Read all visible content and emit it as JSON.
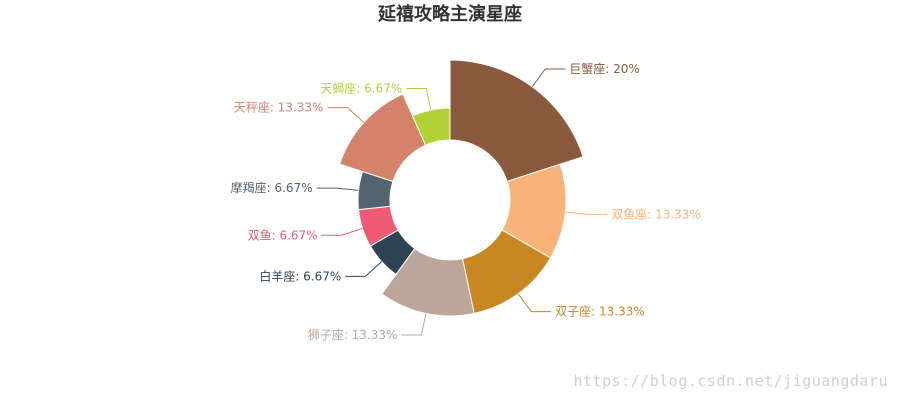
{
  "chart_data": {
    "type": "pie",
    "subtype": "rose-donut",
    "title": "延禧攻略主演星座",
    "slices": [
      {
        "label": "巨蟹座: 20%",
        "name": "巨蟹座",
        "value": 20,
        "color": "#8B5A3C"
      },
      {
        "label": "双鱼座: 13.33%",
        "name": "双鱼座",
        "value": 13.33,
        "color": "#F8B27A"
      },
      {
        "label": "双子座: 13.33%",
        "name": "双子座",
        "value": 13.33,
        "color": "#C98723"
      },
      {
        "label": "狮子座: 13.33%",
        "name": "狮子座",
        "value": 13.33,
        "color": "#BCA59A"
      },
      {
        "label": "白羊座: 6.67%",
        "name": "白羊座",
        "value": 6.67,
        "color": "#2E4456"
      },
      {
        "label": "双鱼: 6.67%",
        "name": "双鱼",
        "value": 6.67,
        "color": "#EF5B73"
      },
      {
        "label": "摩羯座: 6.67%",
        "name": "摩羯座",
        "value": 6.67,
        "color": "#526470"
      },
      {
        "label": "天秤座: 13.33%",
        "name": "天秤座",
        "value": 13.33,
        "color": "#D4826A"
      },
      {
        "label": "天蝎座: 6.67%",
        "name": "天蝎座",
        "value": 6.67,
        "color": "#B0D235"
      }
    ]
  },
  "watermark": "https://blog.csdn.net/jiguangdaru"
}
